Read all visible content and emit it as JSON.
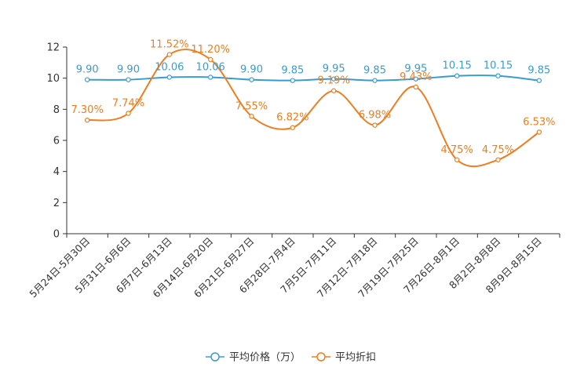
{
  "chart_data": {
    "type": "line",
    "title": "",
    "xlabel": "",
    "ylabel": "",
    "ylim": [
      0,
      12
    ],
    "yticks": [
      0,
      2,
      4,
      6,
      8,
      10,
      12
    ],
    "categories": [
      "5月24日-5月30日",
      "5月31日-6月6日",
      "6月7日-6月13日",
      "6月14日-6月20日",
      "6月21日-6月27日",
      "6月28日-7月4日",
      "7月5日-7月11日",
      "7月12日-7月18日",
      "7月19日-7月25日",
      "7月26日-8月1日",
      "8月2日-8月8日",
      "8月9日-8月15日"
    ],
    "series": [
      {
        "name": "平均价格（万）",
        "color": "#3a9bd0",
        "values": [
          9.9,
          9.9,
          10.06,
          10.06,
          9.9,
          9.85,
          9.95,
          9.85,
          9.95,
          10.15,
          10.15,
          9.85
        ],
        "labels": [
          "9.90",
          "9.90",
          "10.06",
          "10.06",
          "9.90",
          "9.85",
          "9.95",
          "9.85",
          "9.95",
          "10.15",
          "10.15",
          "9.85"
        ]
      },
      {
        "name": "平均折扣",
        "color": "#f07d1e",
        "values": [
          7.3,
          7.74,
          11.52,
          11.2,
          7.55,
          6.82,
          9.19,
          6.98,
          9.43,
          4.75,
          4.75,
          6.53
        ],
        "labels": [
          "7.30%",
          "7.74%",
          "11.52%",
          "11.20%",
          "7.55%",
          "6.82%",
          "9.19%",
          "6.98%",
          "9.43%",
          "4.75%",
          "4.75%",
          "6.53%"
        ]
      }
    ],
    "legend_position": "bottom-center",
    "grid": false
  }
}
